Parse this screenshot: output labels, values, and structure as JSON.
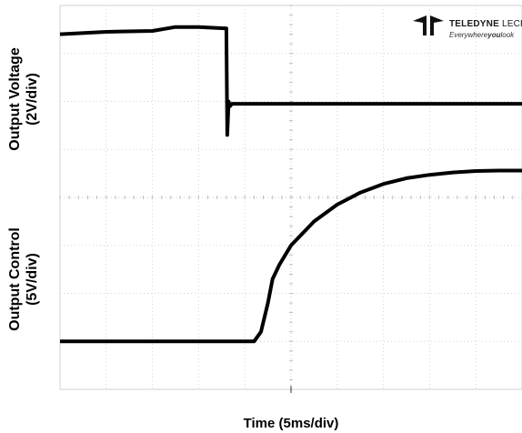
{
  "chart_data": {
    "type": "line",
    "title": "",
    "xlabel": "Time (5ms/div)",
    "divisions": {
      "x": 10,
      "y": 8
    },
    "grid": true,
    "series": [
      {
        "ylabel_line1": "Output Voltage",
        "ylabel_line2": "(2V/div)",
        "x": [
          0,
          4.2,
          4.35,
          4.5,
          4.6,
          4.75,
          5.0,
          5.5,
          6.0,
          6.5,
          7.0,
          7.5,
          8.0,
          8.5,
          9.0,
          9.5,
          10
        ],
        "y": [
          1.0,
          1.0,
          1.2,
          1.8,
          2.3,
          2.6,
          3.0,
          3.5,
          3.85,
          4.1,
          4.28,
          4.4,
          4.47,
          4.52,
          4.55,
          4.56,
          4.56
        ]
      },
      {
        "ylabel_line1": "Output Control",
        "ylabel_line2": "(5V/div)",
        "x": [
          0,
          1.0,
          2.0,
          2.5,
          3.0,
          3.6,
          3.62,
          3.65,
          3.68,
          3.72,
          10
        ],
        "y": [
          7.4,
          7.45,
          7.47,
          7.55,
          7.55,
          7.52,
          5.3,
          6.0,
          5.9,
          5.95,
          5.95
        ]
      }
    ]
  },
  "logo": {
    "brand_bold": "TELEDYNE",
    "brand_light": "LECROY",
    "tagline_pre": "Everywhere",
    "tagline_bold": "you",
    "tagline_post": "look"
  }
}
